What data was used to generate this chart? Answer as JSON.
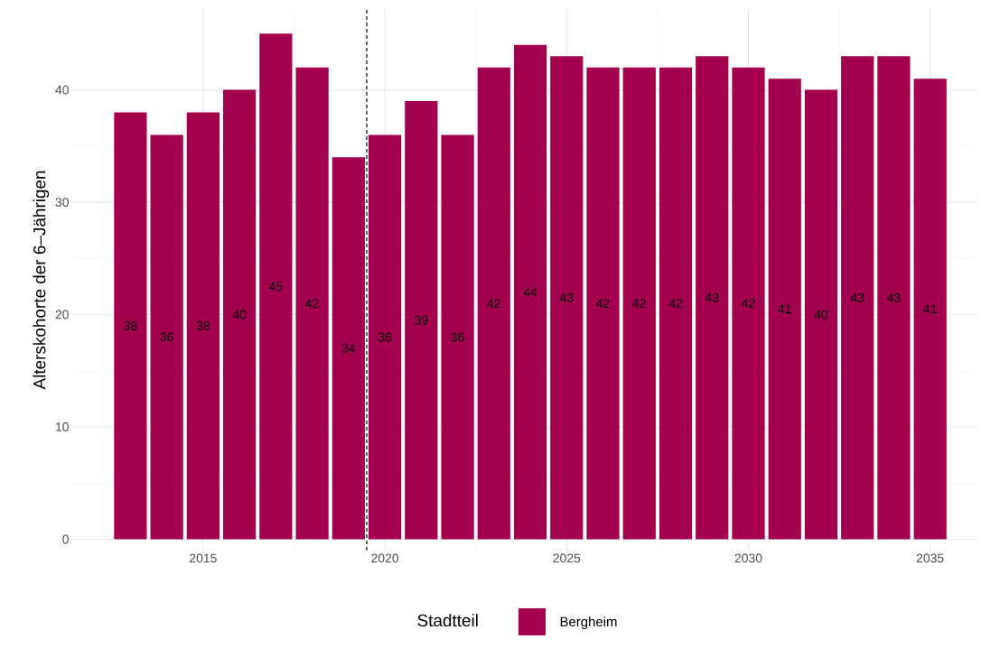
{
  "chart_data": {
    "type": "bar",
    "ylabel": "Alterskohorte der 6–Jährigen",
    "legend_title": "Stadtteil",
    "x": [
      2013,
      2014,
      2015,
      2016,
      2017,
      2018,
      2019,
      2020,
      2021,
      2022,
      2023,
      2024,
      2025,
      2026,
      2027,
      2028,
      2029,
      2030,
      2031,
      2032,
      2033,
      2034,
      2035
    ],
    "series": [
      {
        "name": "Bergheim",
        "color": "#a3004e",
        "values": [
          38,
          36,
          38,
          40,
          45,
          42,
          34,
          36,
          39,
          36,
          42,
          44,
          43,
          42,
          42,
          42,
          43,
          42,
          41,
          40,
          43,
          43,
          41
        ]
      }
    ],
    "xlim": [
      2011.4,
      2036.3
    ],
    "ylim": [
      -1,
      47.2
    ],
    "xticks": [
      2015,
      2020,
      2025,
      2030,
      2035
    ],
    "yticks": [
      0,
      10,
      20,
      30,
      40
    ],
    "ref_lines": [
      {
        "axis": "x",
        "value": 2019.5,
        "color": "#000000",
        "line_style": "dashed"
      }
    ],
    "data_labels": true,
    "grid": true,
    "legend": "bottom"
  }
}
